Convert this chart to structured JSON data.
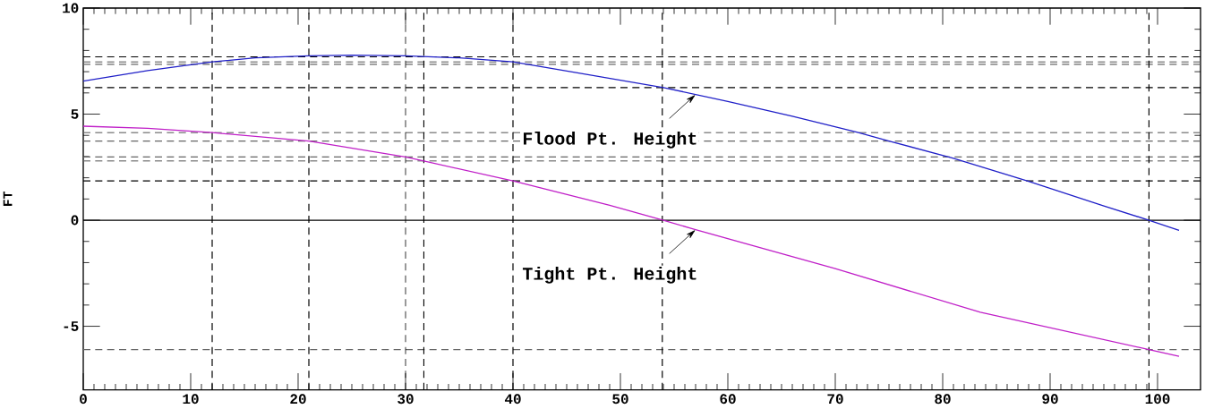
{
  "chart_data": {
    "type": "line",
    "ylabel": "FT",
    "x": [
      0,
      6,
      12,
      16,
      21,
      25,
      30,
      35,
      40,
      46,
      54,
      60,
      66,
      72,
      75,
      81,
      88,
      95,
      99.2,
      102
    ],
    "series": [
      {
        "color": "#2020c8",
        "values": [
          6.56,
          7.05,
          7.46,
          7.65,
          7.75,
          7.78,
          7.75,
          7.65,
          7.46,
          6.95,
          6.25,
          5.6,
          4.9,
          4.15,
          3.73,
          2.92,
          1.83,
          0.67,
          0,
          -0.48
        ]
      },
      {
        "color": "#c020c8",
        "x": [
          0,
          6,
          12,
          21,
          30,
          31.7,
          40,
          49,
          54,
          57,
          70,
          83.5,
          99.2,
          102
        ],
        "values": [
          4.43,
          4.33,
          4.13,
          3.73,
          2.98,
          2.79,
          1.85,
          0.7,
          0,
          -0.45,
          -2.28,
          -4.34,
          -6.1,
          -6.42
        ]
      }
    ],
    "xlim": [
      0,
      104
    ],
    "ylim": [
      -8,
      10
    ],
    "xticks": [
      0,
      10,
      20,
      30,
      40,
      50,
      60,
      70,
      80,
      90,
      100
    ],
    "yticks": [
      -5,
      0,
      5,
      10
    ],
    "ref_lines": [
      {
        "axis": "y",
        "value": 7.7,
        "color": "#000000",
        "line_style": "dashed"
      },
      {
        "axis": "y",
        "value": 7.46,
        "color": "#666666",
        "line_style": "dashed"
      },
      {
        "axis": "y",
        "value": 7.35,
        "color": "#666666",
        "line_style": "dashed"
      },
      {
        "axis": "y",
        "value": 6.25,
        "color": "#000000",
        "line_style": "dashed"
      },
      {
        "axis": "y",
        "value": 4.13,
        "color": "#666666",
        "line_style": "dashed"
      },
      {
        "axis": "y",
        "value": 3.73,
        "color": "#666666",
        "line_style": "dashed"
      },
      {
        "axis": "y",
        "value": 2.98,
        "color": "#666666",
        "line_style": "dashed"
      },
      {
        "axis": "y",
        "value": 2.79,
        "color": "#666666",
        "line_style": "dashed"
      },
      {
        "axis": "y",
        "value": 1.85,
        "color": "#000000",
        "line_style": "dashed"
      },
      {
        "axis": "y",
        "value": 0,
        "color": "#000000",
        "line_style": "solid"
      },
      {
        "axis": "y",
        "value": -6.1,
        "color": "#666666",
        "line_style": "dashed"
      },
      {
        "axis": "x",
        "value": 12,
        "color": "#000000",
        "line_style": "dashed"
      },
      {
        "axis": "x",
        "value": 21,
        "color": "#000000",
        "line_style": "dashed"
      },
      {
        "axis": "x",
        "value": 30,
        "color": "#000000",
        "line_style": "dashed"
      },
      {
        "axis": "x",
        "value": 31.7,
        "color": "#000000",
        "line_style": "dashed"
      },
      {
        "axis": "x",
        "value": 40,
        "color": "#000000",
        "line_style": "dashed"
      },
      {
        "axis": "x",
        "value": 53.9,
        "color": "#000000",
        "line_style": "dashed"
      },
      {
        "axis": "x",
        "value": 99.2,
        "color": "#000000",
        "line_style": "dashed"
      }
    ],
    "annotations": [
      {
        "text": "Flood Pt. Height",
        "x": 57,
        "y": 5.92
      },
      {
        "text": "Tight Pt. Height",
        "x": 57,
        "y": -0.45
      }
    ],
    "marker": "none",
    "line_style": "solid"
  }
}
